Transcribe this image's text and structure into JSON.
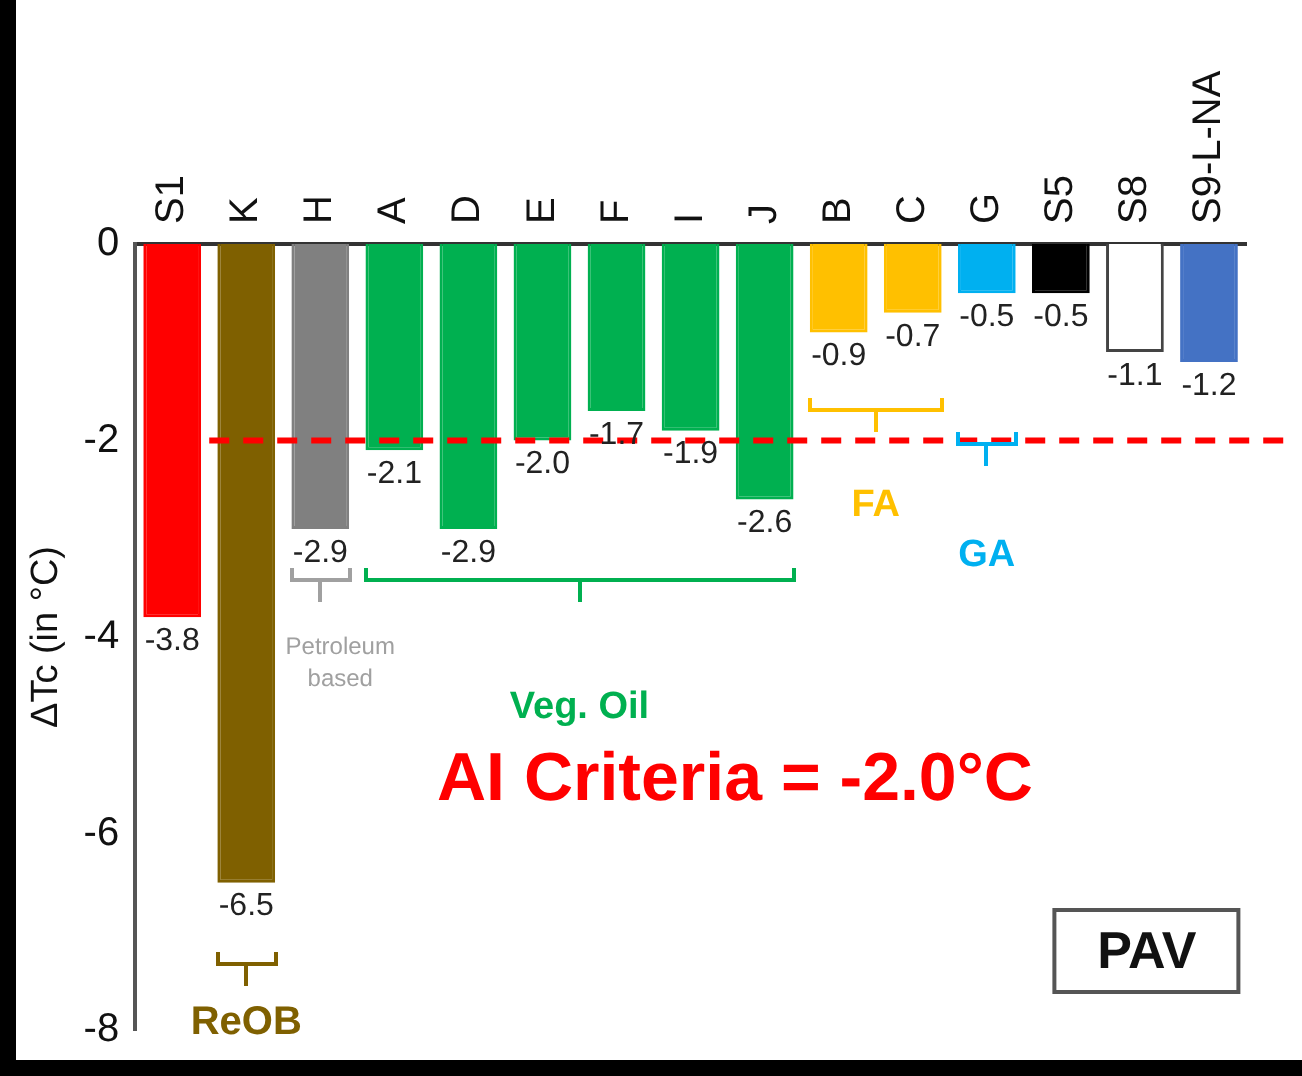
{
  "chart_data": {
    "type": "bar",
    "ylabel": "ΔTc (in °C)",
    "categories": [
      "S1",
      "K",
      "H",
      "A",
      "D",
      "E",
      "F",
      "I",
      "J",
      "B",
      "C",
      "G",
      "S5",
      "S8",
      "S9-L-NA"
    ],
    "values": [
      -3.8,
      -6.5,
      -2.9,
      -2.1,
      -2.9,
      -2.0,
      -1.7,
      -1.9,
      -2.6,
      -0.9,
      -0.7,
      -0.5,
      -0.5,
      -1.1,
      -1.2
    ],
    "colors": [
      "#ff0000",
      "#7f6000",
      "#808080",
      "#00b050",
      "#00b050",
      "#00b050",
      "#00b050",
      "#00b050",
      "#00b050",
      "#ffc000",
      "#ffc000",
      "#00b0f0",
      "#000000",
      "#ffffff",
      "#4472c4"
    ],
    "value_labels": [
      "-3.8",
      "-6.5",
      "-2.9",
      "-2.1",
      "-2.9",
      "-2.0",
      "-1.7",
      "-1.9",
      "-2.6",
      "-0.9",
      "-0.7",
      "-0.5",
      "-0.5",
      "-1.1",
      "-1.2"
    ],
    "ylim": [
      -8,
      0
    ],
    "yticks": [
      0,
      -2,
      -4,
      -6,
      -8
    ],
    "grid": false,
    "legend": false,
    "ref_lines": [
      {
        "axis": "y",
        "value": -2,
        "label": "AI Criteria = -2.0°C",
        "color": "#ff0000",
        "line_style": "dashed"
      }
    ],
    "annotations": [
      "ReOB",
      "Petroleum based",
      "Veg. Oil",
      "FA",
      "GA",
      "PAV"
    ]
  }
}
